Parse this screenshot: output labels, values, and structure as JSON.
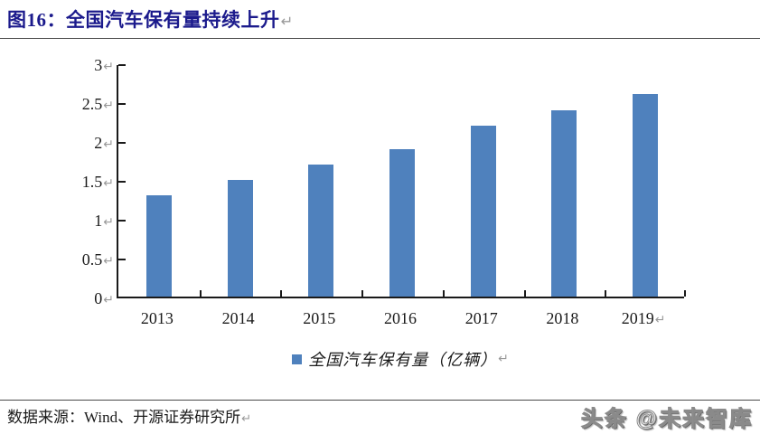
{
  "title": {
    "text": "图16：全国汽车保有量持续上升"
  },
  "marks": {
    "ret": "↵"
  },
  "chart_data": {
    "type": "bar",
    "title": "全国汽车保有量持续上升",
    "categories": [
      "2013",
      "2014",
      "2015",
      "2016",
      "2017",
      "2018",
      "2019"
    ],
    "values": [
      1.3,
      1.5,
      1.7,
      1.9,
      2.2,
      2.4,
      2.6
    ],
    "series_name": "全国汽车保有量（亿辆）",
    "legend": "全国汽车保有量（亿辆）",
    "legend_position": "bottom-center",
    "xlabel": "",
    "ylabel": "",
    "ylim": [
      0,
      3
    ],
    "yticks": [
      0,
      0.5,
      1,
      1.5,
      2,
      2.5,
      3
    ],
    "ytick_labels": [
      "0",
      "0.5",
      "1",
      "1.5",
      "2",
      "2.5",
      "3"
    ],
    "grid": false,
    "bar_color": "#4f81bd"
  },
  "footer": {
    "source": "数据来源：Wind、开源证券研究所",
    "watermark": "头条 @未来智库"
  },
  "colors": {
    "title": "#1b1a8c",
    "bar": "#4f81bd",
    "axis": "#1a1a1a",
    "return_mark": "#9a9a9a"
  }
}
